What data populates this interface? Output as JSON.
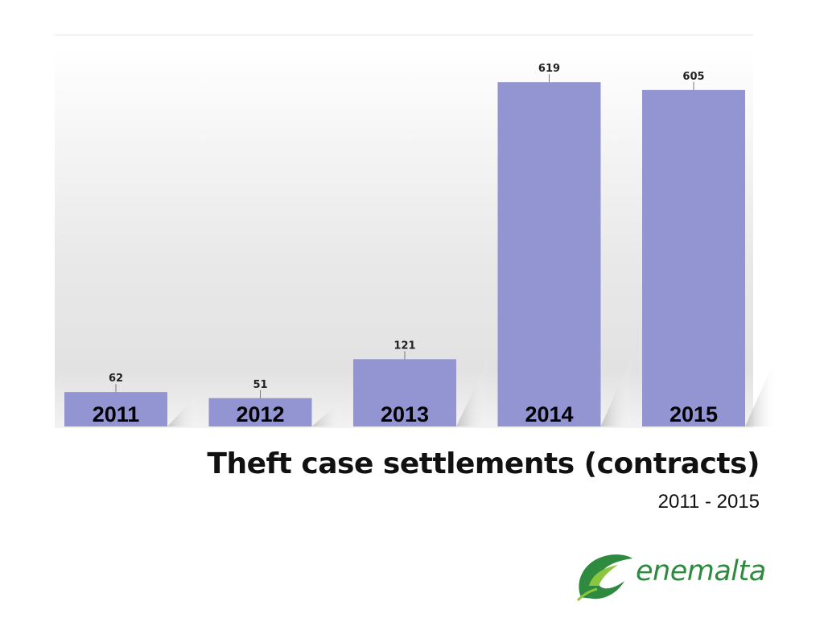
{
  "chart_data": {
    "type": "bar",
    "title": "Theft case settlements (contracts)",
    "subtitle": "2011 - 2015",
    "categories": [
      "2011",
      "2012",
      "2013",
      "2014",
      "2015"
    ],
    "values": [
      62,
      51,
      121,
      619,
      605
    ],
    "ylim": [
      0,
      680
    ],
    "grid": false,
    "xlabel": "",
    "ylabel": "",
    "colors": {
      "bar": "#9395d3",
      "bar_label": "#000000",
      "value_label": "#222222"
    }
  },
  "logo": {
    "text": "enemalta",
    "icon": "leaf-e-icon",
    "color": "#2d8a3e",
    "accent": "#8cc63f"
  }
}
